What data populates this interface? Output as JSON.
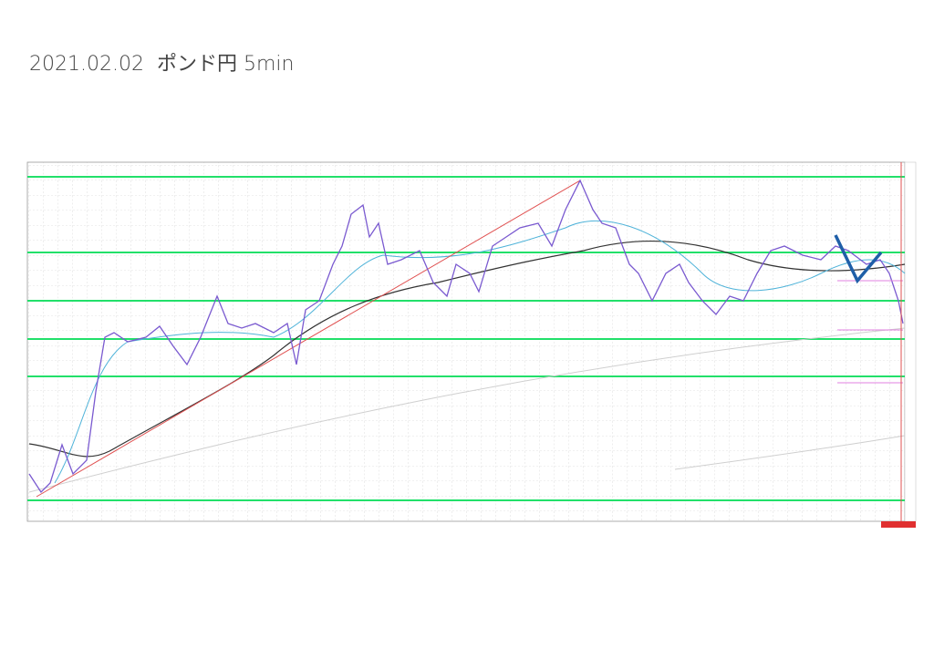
{
  "header": {
    "title": "2021.02.02  ポンド円 5min"
  }
}
